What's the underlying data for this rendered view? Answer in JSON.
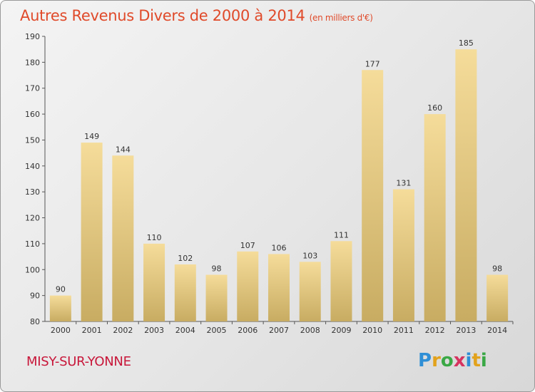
{
  "chart_data": {
    "type": "bar",
    "title": "Autres Revenus Divers de 2000 à 2014",
    "title_unit": "(en milliers d'€)",
    "categories": [
      "2000",
      "2001",
      "2002",
      "2003",
      "2004",
      "2005",
      "2006",
      "2007",
      "2008",
      "2009",
      "2010",
      "2011",
      "2012",
      "2013",
      "2014"
    ],
    "values": [
      90,
      149,
      144,
      110,
      102,
      98,
      107,
      106,
      103,
      111,
      177,
      131,
      160,
      185,
      98
    ],
    "ylim": [
      80,
      190
    ],
    "yticks": [
      80,
      90,
      100,
      110,
      120,
      130,
      140,
      150,
      160,
      170,
      180,
      190
    ],
    "grid": false,
    "legend": "none",
    "bar_color_top": "#f5dc9a",
    "bar_color_bottom": "#c8ac62"
  },
  "footer": {
    "commune": "MISY-SUR-YONNE"
  },
  "logo": {
    "letters": [
      "P",
      "r",
      "o",
      "x",
      "i",
      "t",
      "i"
    ],
    "colors": [
      "#2f8fd6",
      "#e2a21c",
      "#3aa845",
      "#d6335f",
      "#2f8fd6",
      "#e2a21c",
      "#3aa845"
    ]
  }
}
